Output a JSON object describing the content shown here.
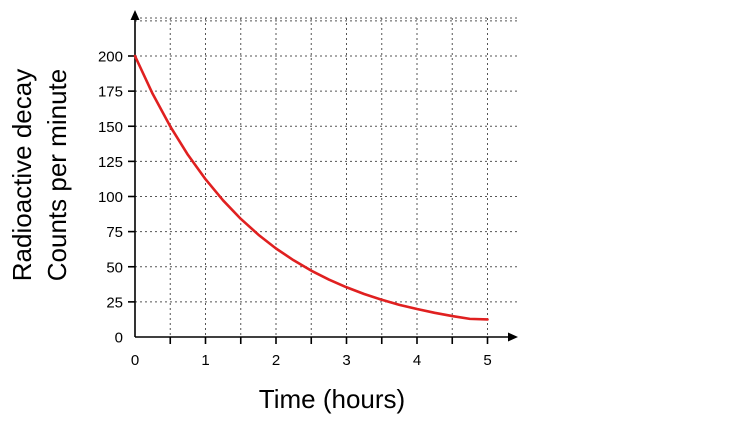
{
  "chart_data": {
    "type": "line",
    "title": "",
    "xlabel": "Time (hours)",
    "ylabel_lines": [
      "Radioactive decay",
      "Counts per minute"
    ],
    "xlim": [
      0,
      5.4
    ],
    "ylim": [
      0,
      225
    ],
    "x_ticks": [
      0,
      1,
      2,
      3,
      4,
      5
    ],
    "y_ticks": [
      0,
      25,
      50,
      75,
      100,
      125,
      150,
      175,
      200
    ],
    "x_grid_step": 0.5,
    "y_grid_step": 25,
    "grid": true,
    "legend": "none",
    "series": [
      {
        "color": "#e02020",
        "x": [
          0,
          0.25,
          0.5,
          0.75,
          1,
          1.25,
          1.5,
          1.75,
          2,
          2.25,
          2.5,
          2.75,
          3,
          3.25,
          3.5,
          3.75,
          4,
          4.25,
          4.5,
          4.75,
          5
        ],
        "y": [
          200,
          173.1,
          149.9,
          129.7,
          112.3,
          97.2,
          84.1,
          72.8,
          63.0,
          54.6,
          47.2,
          40.9,
          35.4,
          30.6,
          26.5,
          22.9,
          19.9,
          17.2,
          14.9,
          12.9,
          12.5
        ]
      }
    ]
  }
}
